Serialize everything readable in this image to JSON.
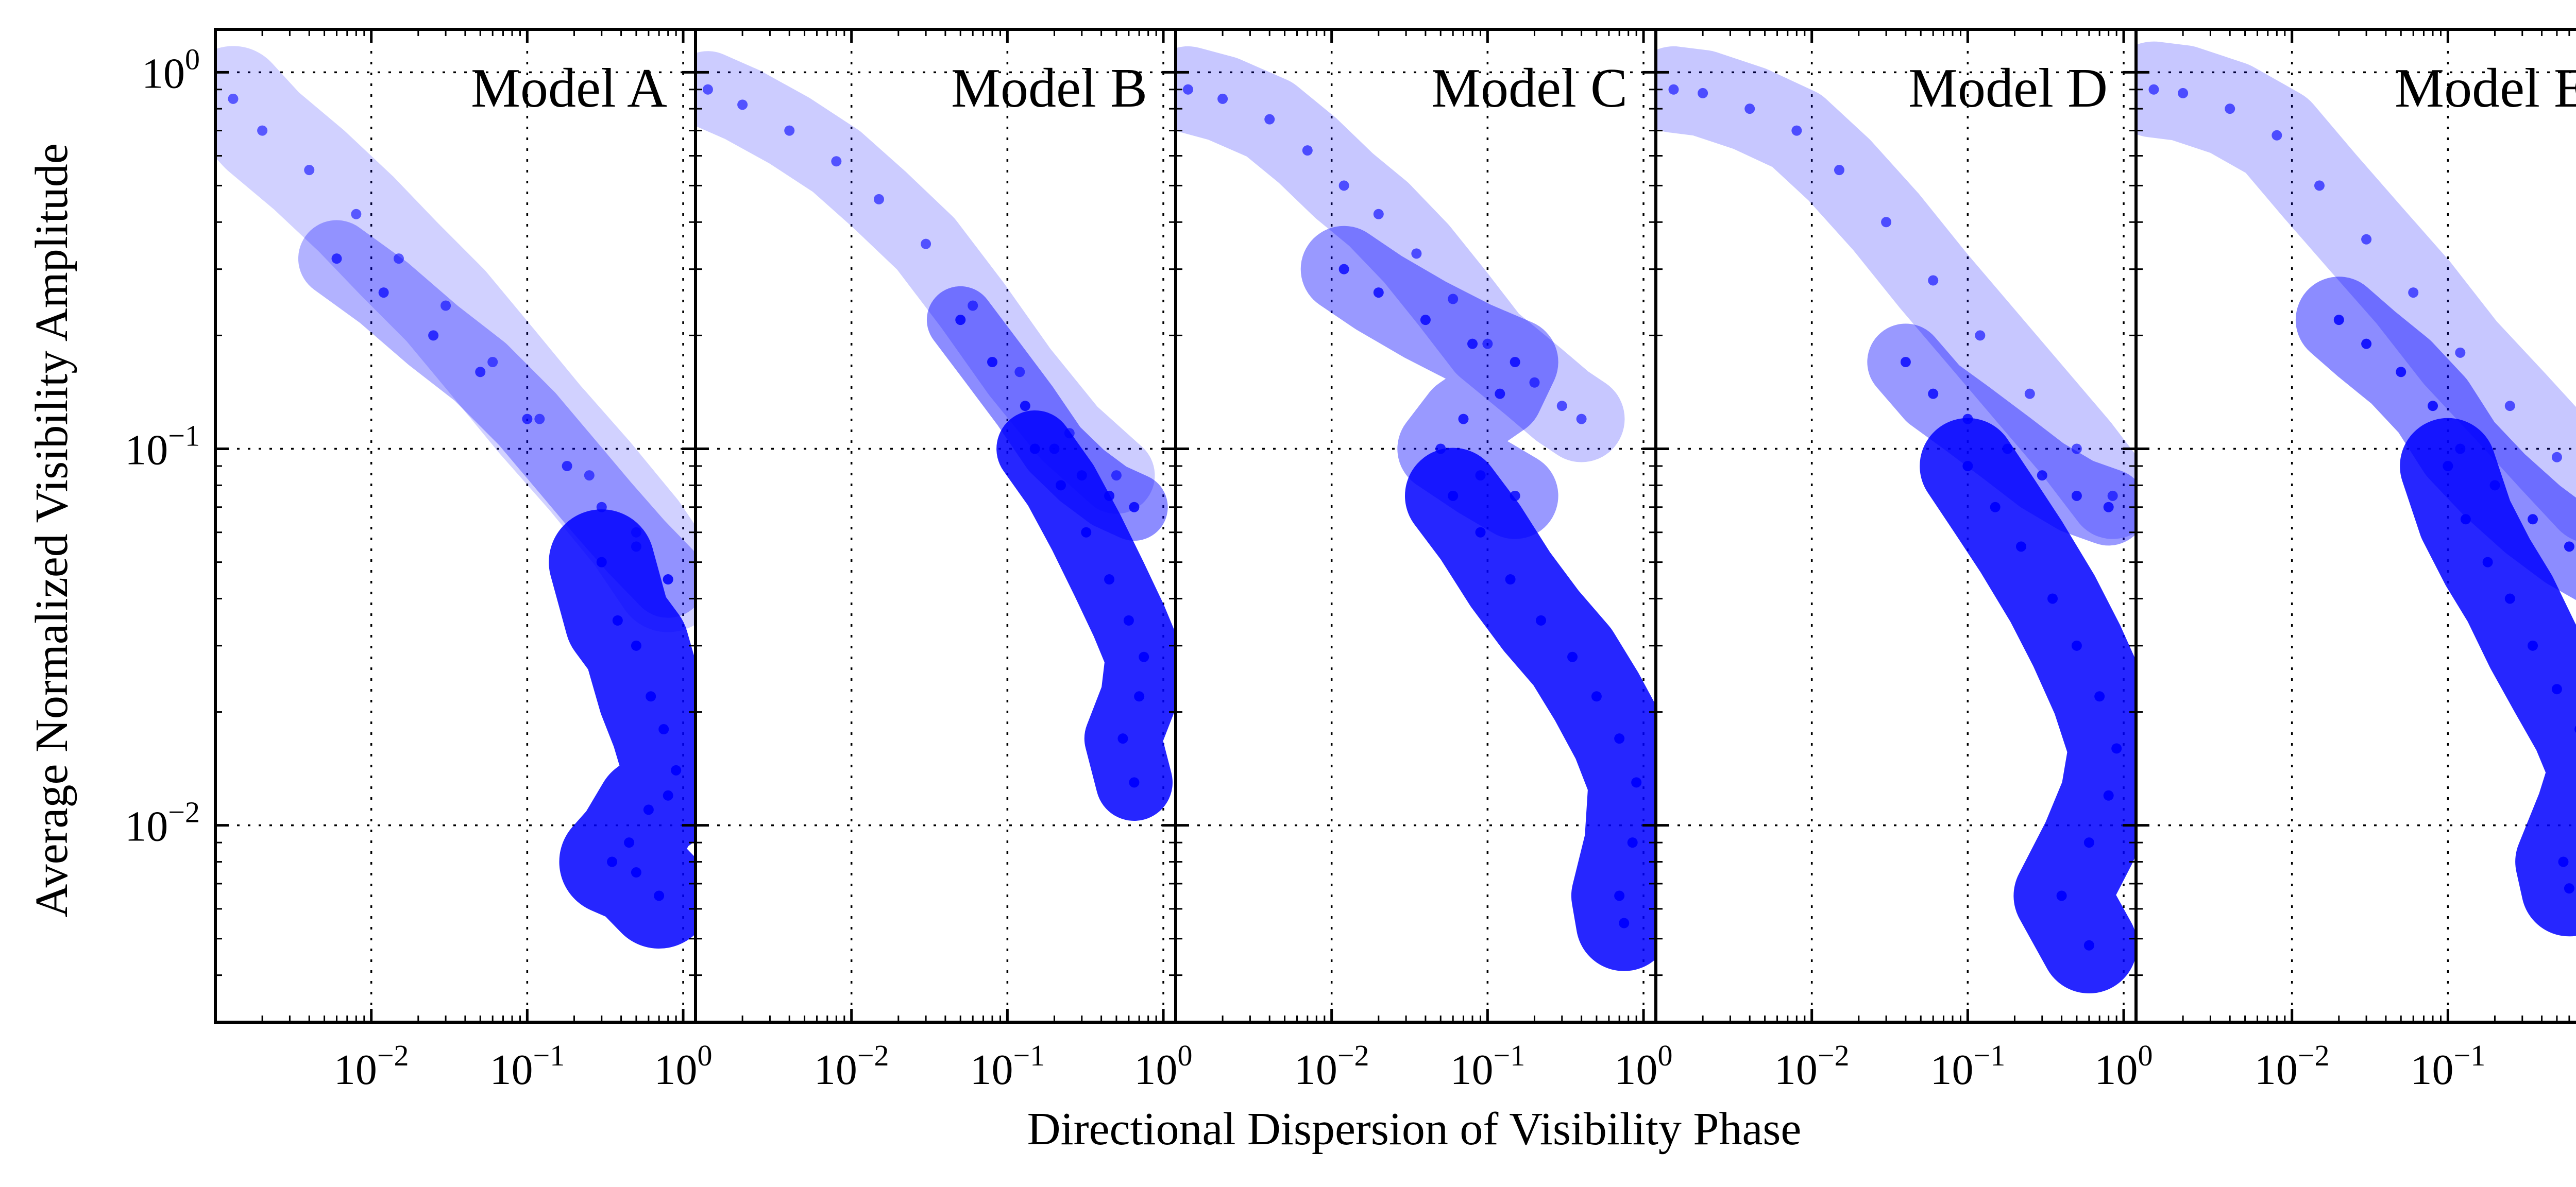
{
  "chart_data": {
    "type": "scatter",
    "xlabel": "Directional Dispersion of Visibility Phase",
    "ylabel": "Average Normalized Visibility Amplitude",
    "xscale": "log",
    "yscale": "log",
    "xlim": [
      0.001,
      1.2
    ],
    "ylim": [
      0.003,
      1.3
    ],
    "sharey": true,
    "grid": true,
    "marker_color": "#0000ff",
    "x_ticks": [
      {
        "value": 0.01,
        "base": "10",
        "exp": "−2"
      },
      {
        "value": 0.1,
        "base": "10",
        "exp": "−1"
      },
      {
        "value": 1,
        "base": "10",
        "exp": "0"
      }
    ],
    "y_ticks": [
      {
        "value": 0.01,
        "base": "10",
        "exp": "−2"
      },
      {
        "value": 0.1,
        "base": "10",
        "exp": "−1"
      },
      {
        "value": 1,
        "base": "10",
        "exp": "0"
      }
    ],
    "panels": [
      {
        "label": "Model A",
        "series": [
          {
            "name": "light",
            "opacity": 0.18,
            "width": 0.22,
            "x": [
              0.0013,
              0.002,
              0.004,
              0.008,
              0.015,
              0.03,
              0.06,
              0.12,
              0.25,
              0.5,
              0.8
            ],
            "y": [
              0.85,
              0.7,
              0.55,
              0.42,
              0.32,
              0.24,
              0.17,
              0.12,
              0.085,
              0.06,
              0.045
            ]
          },
          {
            "name": "medium",
            "opacity": 0.3,
            "width": 0.16,
            "x": [
              0.006,
              0.012,
              0.025,
              0.05,
              0.1,
              0.18,
              0.3,
              0.5,
              0.8
            ],
            "y": [
              0.32,
              0.26,
              0.2,
              0.16,
              0.12,
              0.09,
              0.07,
              0.055,
              0.045
            ]
          },
          {
            "name": "dense",
            "opacity": 0.85,
            "width": 0.22,
            "x": [
              0.3,
              0.38,
              0.5,
              0.62,
              0.75,
              0.9,
              0.8,
              0.6,
              0.45,
              0.35,
              0.5,
              0.7
            ],
            "y": [
              0.05,
              0.035,
              0.03,
              0.022,
              0.018,
              0.014,
              0.012,
              0.011,
              0.009,
              0.008,
              0.0075,
              0.0065
            ]
          }
        ]
      },
      {
        "label": "Model B",
        "series": [
          {
            "name": "light",
            "opacity": 0.2,
            "width": 0.16,
            "x": [
              0.0012,
              0.002,
              0.004,
              0.008,
              0.015,
              0.03,
              0.06,
              0.12,
              0.25,
              0.5
            ],
            "y": [
              0.9,
              0.82,
              0.7,
              0.58,
              0.46,
              0.35,
              0.24,
              0.16,
              0.11,
              0.085
            ]
          },
          {
            "name": "medium",
            "opacity": 0.45,
            "width": 0.14,
            "x": [
              0.05,
              0.08,
              0.13,
              0.2,
              0.3,
              0.45,
              0.65
            ],
            "y": [
              0.22,
              0.17,
              0.13,
              0.1,
              0.085,
              0.075,
              0.07
            ]
          },
          {
            "name": "dense",
            "opacity": 0.85,
            "width": 0.16,
            "x": [
              0.15,
              0.22,
              0.32,
              0.45,
              0.6,
              0.75,
              0.7,
              0.55,
              0.65
            ],
            "y": [
              0.1,
              0.08,
              0.06,
              0.045,
              0.035,
              0.028,
              0.022,
              0.017,
              0.013
            ]
          }
        ]
      },
      {
        "label": "Model C",
        "series": [
          {
            "name": "light",
            "opacity": 0.22,
            "width": 0.18,
            "x": [
              0.0012,
              0.002,
              0.004,
              0.007,
              0.012,
              0.02,
              0.035,
              0.06,
              0.1,
              0.2,
              0.3,
              0.4
            ],
            "y": [
              0.9,
              0.85,
              0.75,
              0.62,
              0.5,
              0.42,
              0.33,
              0.25,
              0.19,
              0.15,
              0.13,
              0.12
            ]
          },
          {
            "name": "medium",
            "opacity": 0.4,
            "width": 0.18,
            "x": [
              0.012,
              0.02,
              0.04,
              0.08,
              0.15,
              0.12,
              0.07,
              0.05,
              0.09,
              0.15
            ],
            "y": [
              0.3,
              0.26,
              0.22,
              0.19,
              0.17,
              0.14,
              0.12,
              0.1,
              0.085,
              0.075
            ]
          },
          {
            "name": "dense",
            "opacity": 0.85,
            "width": 0.2,
            "x": [
              0.06,
              0.09,
              0.14,
              0.22,
              0.35,
              0.5,
              0.7,
              0.9,
              0.85,
              0.7,
              0.75
            ],
            "y": [
              0.075,
              0.06,
              0.045,
              0.035,
              0.028,
              0.022,
              0.017,
              0.013,
              0.009,
              0.0065,
              0.0055
            ]
          }
        ]
      },
      {
        "label": "Model D",
        "series": [
          {
            "name": "light",
            "opacity": 0.22,
            "width": 0.18,
            "x": [
              0.0013,
              0.002,
              0.004,
              0.008,
              0.015,
              0.03,
              0.06,
              0.12,
              0.25,
              0.5,
              0.85
            ],
            "y": [
              0.9,
              0.88,
              0.8,
              0.7,
              0.55,
              0.4,
              0.28,
              0.2,
              0.14,
              0.1,
              0.075
            ]
          },
          {
            "name": "medium",
            "opacity": 0.4,
            "width": 0.16,
            "x": [
              0.04,
              0.06,
              0.1,
              0.18,
              0.3,
              0.5,
              0.8
            ],
            "y": [
              0.17,
              0.14,
              0.12,
              0.1,
              0.085,
              0.075,
              0.07
            ]
          },
          {
            "name": "dense",
            "opacity": 0.85,
            "width": 0.2,
            "x": [
              0.1,
              0.15,
              0.22,
              0.35,
              0.5,
              0.7,
              0.9,
              0.8,
              0.6,
              0.4,
              0.6
            ],
            "y": [
              0.09,
              0.07,
              0.055,
              0.04,
              0.03,
              0.022,
              0.016,
              0.012,
              0.009,
              0.0065,
              0.0048
            ]
          }
        ]
      },
      {
        "label": "Model E",
        "series": [
          {
            "name": "light",
            "opacity": 0.22,
            "width": 0.2,
            "x": [
              0.0013,
              0.002,
              0.004,
              0.008,
              0.015,
              0.03,
              0.06,
              0.12,
              0.25,
              0.5,
              0.85
            ],
            "y": [
              0.9,
              0.88,
              0.8,
              0.68,
              0.5,
              0.36,
              0.26,
              0.18,
              0.13,
              0.095,
              0.075
            ]
          },
          {
            "name": "medium",
            "opacity": 0.45,
            "width": 0.18,
            "x": [
              0.02,
              0.03,
              0.05,
              0.08,
              0.12,
              0.2,
              0.35,
              0.6,
              0.9
            ],
            "y": [
              0.22,
              0.19,
              0.16,
              0.13,
              0.1,
              0.08,
              0.065,
              0.055,
              0.05
            ]
          },
          {
            "name": "dense",
            "opacity": 0.85,
            "width": 0.2,
            "x": [
              0.1,
              0.13,
              0.18,
              0.25,
              0.35,
              0.5,
              0.7,
              0.9,
              0.75,
              0.55,
              0.6
            ],
            "y": [
              0.09,
              0.065,
              0.05,
              0.04,
              0.03,
              0.023,
              0.018,
              0.014,
              0.011,
              0.008,
              0.0068
            ]
          }
        ]
      }
    ]
  }
}
